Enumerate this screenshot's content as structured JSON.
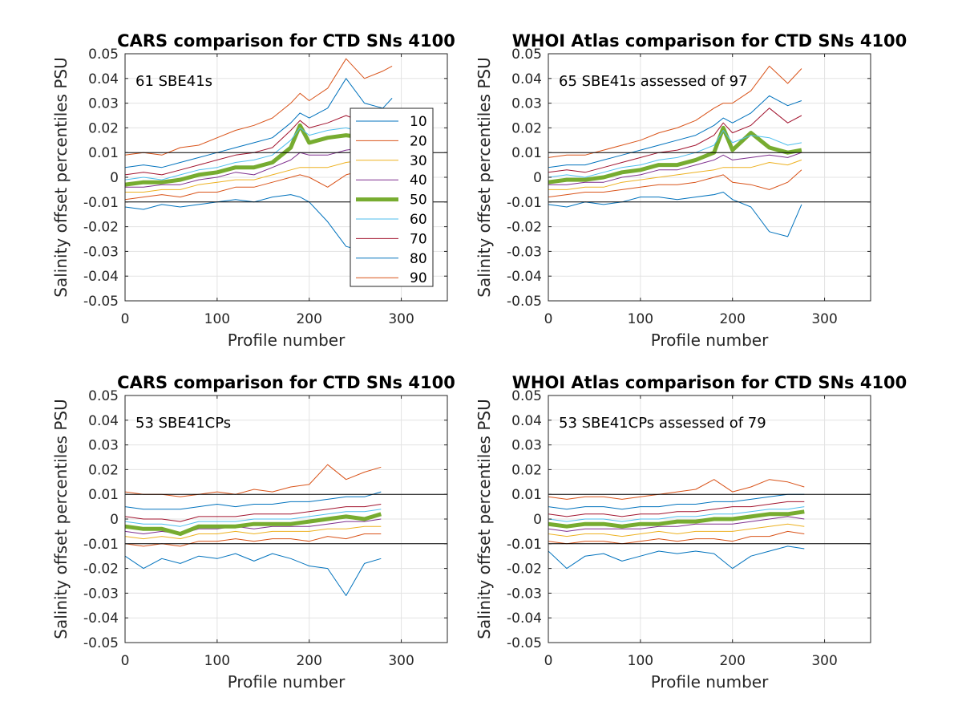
{
  "chart_data": [
    {
      "type": "line",
      "title": "CARS comparison for CTD SNs 4100",
      "xlabel": "Profile number",
      "ylabel": "Salinity offset percentiles PSU",
      "annotation": "61 SBE41s",
      "xlim": [
        0,
        350
      ],
      "ylim": [
        -0.05,
        0.05
      ],
      "xticks": [
        "0",
        "100",
        "200",
        "300"
      ],
      "yticks": [
        "-0.05",
        "-0.04",
        "-0.03",
        "-0.02",
        "-0.01",
        "0",
        "0.01",
        "0.02",
        "0.03",
        "0.04",
        "0.05"
      ],
      "grid": true,
      "reference_lines": [
        0.01,
        -0.01
      ],
      "legend": {
        "placement": "right-inside",
        "entries": [
          "10",
          "20",
          "30",
          "40",
          "50",
          "60",
          "70",
          "80",
          "90"
        ]
      },
      "x": [
        0,
        20,
        40,
        60,
        80,
        100,
        120,
        140,
        160,
        180,
        190,
        200,
        220,
        240,
        260,
        280,
        290
      ],
      "series": [
        {
          "name": "10",
          "color": "#0072BD",
          "values": [
            -0.012,
            -0.013,
            -0.011,
            -0.012,
            -0.011,
            -0.01,
            -0.009,
            -0.01,
            -0.008,
            -0.007,
            -0.008,
            -0.01,
            -0.018,
            -0.028,
            -0.03,
            -0.02,
            -0.016
          ]
        },
        {
          "name": "20",
          "color": "#D95319",
          "values": [
            -0.009,
            -0.008,
            -0.007,
            -0.008,
            -0.006,
            -0.006,
            -0.004,
            -0.004,
            -0.002,
            0.0,
            0.001,
            0.0,
            -0.004,
            0.001,
            0.003,
            -0.001,
            0.0
          ]
        },
        {
          "name": "30",
          "color": "#EDB120",
          "values": [
            -0.006,
            -0.006,
            -0.005,
            -0.005,
            -0.003,
            -0.002,
            -0.001,
            -0.001,
            0.001,
            0.003,
            0.004,
            0.004,
            0.004,
            0.006,
            0.007,
            0.006,
            0.007
          ]
        },
        {
          "name": "40",
          "color": "#7E2F8E",
          "values": [
            -0.004,
            -0.004,
            -0.003,
            -0.003,
            -0.001,
            0.0,
            0.002,
            0.001,
            0.004,
            0.007,
            0.01,
            0.009,
            0.009,
            0.011,
            0.012,
            0.01,
            0.011
          ]
        },
        {
          "name": "50",
          "color": "#77AC30",
          "values": [
            -0.003,
            -0.002,
            -0.002,
            -0.001,
            0.001,
            0.002,
            0.004,
            0.004,
            0.006,
            0.012,
            0.021,
            0.014,
            0.016,
            0.017,
            0.016,
            0.015,
            0.016
          ]
        },
        {
          "name": "60",
          "color": "#4DBEEE",
          "values": [
            -0.001,
            0.0,
            -0.001,
            0.001,
            0.003,
            0.004,
            0.006,
            0.007,
            0.009,
            0.015,
            0.02,
            0.017,
            0.019,
            0.02,
            0.018,
            0.017,
            0.019
          ]
        },
        {
          "name": "70",
          "color": "#A2142F",
          "values": [
            0.001,
            0.002,
            0.001,
            0.003,
            0.005,
            0.007,
            0.009,
            0.01,
            0.012,
            0.019,
            0.023,
            0.02,
            0.022,
            0.025,
            0.022,
            0.02,
            0.021
          ]
        },
        {
          "name": "80",
          "color": "#0072BD",
          "values": [
            0.004,
            0.005,
            0.004,
            0.006,
            0.008,
            0.01,
            0.012,
            0.014,
            0.016,
            0.022,
            0.026,
            0.024,
            0.028,
            0.04,
            0.03,
            0.028,
            0.032
          ]
        },
        {
          "name": "90",
          "color": "#D95319",
          "values": [
            0.009,
            0.01,
            0.009,
            0.012,
            0.013,
            0.016,
            0.019,
            0.021,
            0.024,
            0.03,
            0.034,
            0.031,
            0.036,
            0.048,
            0.04,
            0.043,
            0.045
          ]
        }
      ]
    },
    {
      "type": "line",
      "title": "WHOI Atlas comparison for CTD SNs 4100",
      "xlabel": "Profile number",
      "ylabel": "Salinity offset percentiles PSU",
      "annotation": "65 SBE41s assessed of 97",
      "xlim": [
        0,
        350
      ],
      "ylim": [
        -0.05,
        0.05
      ],
      "xticks": [
        "0",
        "100",
        "200",
        "300"
      ],
      "yticks": [
        "-0.05",
        "-0.04",
        "-0.03",
        "-0.02",
        "-0.01",
        "0",
        "0.01",
        "0.02",
        "0.03",
        "0.04",
        "0.05"
      ],
      "grid": true,
      "reference_lines": [
        0.01,
        -0.01
      ],
      "x": [
        0,
        20,
        40,
        60,
        80,
        100,
        120,
        140,
        160,
        180,
        190,
        200,
        220,
        240,
        260,
        275
      ],
      "series": [
        {
          "name": "10",
          "color": "#0072BD",
          "values": [
            -0.011,
            -0.012,
            -0.01,
            -0.011,
            -0.01,
            -0.008,
            -0.008,
            -0.009,
            -0.008,
            -0.007,
            -0.006,
            -0.009,
            -0.012,
            -0.022,
            -0.024,
            -0.011
          ]
        },
        {
          "name": "20",
          "color": "#D95319",
          "values": [
            -0.008,
            -0.007,
            -0.006,
            -0.006,
            -0.005,
            -0.004,
            -0.003,
            -0.003,
            -0.002,
            0.0,
            0.001,
            -0.002,
            -0.003,
            -0.005,
            -0.002,
            0.003
          ]
        },
        {
          "name": "30",
          "color": "#EDB120",
          "values": [
            -0.005,
            -0.005,
            -0.004,
            -0.004,
            -0.002,
            -0.001,
            0.0,
            0.001,
            0.002,
            0.003,
            0.004,
            0.004,
            0.004,
            0.006,
            0.005,
            0.007
          ]
        },
        {
          "name": "40",
          "color": "#7E2F8E",
          "values": [
            -0.003,
            -0.003,
            -0.002,
            -0.002,
            0.0,
            0.001,
            0.003,
            0.003,
            0.005,
            0.007,
            0.009,
            0.007,
            0.008,
            0.009,
            0.008,
            0.01
          ]
        },
        {
          "name": "50",
          "color": "#77AC30",
          "values": [
            -0.002,
            -0.001,
            -0.001,
            0.0,
            0.002,
            0.003,
            0.005,
            0.005,
            0.007,
            0.01,
            0.02,
            0.011,
            0.018,
            0.012,
            0.01,
            0.011
          ]
        },
        {
          "name": "60",
          "color": "#4DBEEE",
          "values": [
            0.0,
            0.001,
            0.0,
            0.002,
            0.004,
            0.005,
            0.007,
            0.008,
            0.01,
            0.013,
            0.019,
            0.014,
            0.017,
            0.016,
            0.013,
            0.014
          ]
        },
        {
          "name": "70",
          "color": "#A2142F",
          "values": [
            0.002,
            0.003,
            0.002,
            0.004,
            0.006,
            0.008,
            0.01,
            0.011,
            0.013,
            0.017,
            0.022,
            0.018,
            0.021,
            0.028,
            0.022,
            0.025
          ]
        },
        {
          "name": "80",
          "color": "#0072BD",
          "values": [
            0.004,
            0.005,
            0.005,
            0.007,
            0.009,
            0.011,
            0.013,
            0.015,
            0.017,
            0.021,
            0.024,
            0.022,
            0.026,
            0.033,
            0.029,
            0.031
          ]
        },
        {
          "name": "90",
          "color": "#D95319",
          "values": [
            0.008,
            0.009,
            0.009,
            0.011,
            0.013,
            0.015,
            0.018,
            0.02,
            0.023,
            0.028,
            0.03,
            0.03,
            0.035,
            0.045,
            0.038,
            0.044
          ]
        }
      ]
    },
    {
      "type": "line",
      "title": "CARS comparison for CTD SNs 4100",
      "xlabel": "Profile number",
      "ylabel": "Salinity offset percentiles PSU",
      "annotation": "53 SBE41CPs",
      "xlim": [
        0,
        350
      ],
      "ylim": [
        -0.05,
        0.05
      ],
      "xticks": [
        "0",
        "100",
        "200",
        "300"
      ],
      "yticks": [
        "-0.05",
        "-0.04",
        "-0.03",
        "-0.02",
        "-0.01",
        "0",
        "0.01",
        "0.02",
        "0.03",
        "0.04",
        "0.05"
      ],
      "grid": true,
      "reference_lines": [
        0.01,
        -0.01
      ],
      "x": [
        0,
        20,
        40,
        60,
        80,
        100,
        120,
        140,
        160,
        180,
        200,
        220,
        240,
        260,
        278
      ],
      "series": [
        {
          "name": "10",
          "color": "#0072BD",
          "values": [
            -0.015,
            -0.02,
            -0.016,
            -0.018,
            -0.015,
            -0.016,
            -0.014,
            -0.017,
            -0.014,
            -0.016,
            -0.019,
            -0.02,
            -0.031,
            -0.018,
            -0.016
          ]
        },
        {
          "name": "20",
          "color": "#D95319",
          "values": [
            -0.01,
            -0.011,
            -0.01,
            -0.011,
            -0.009,
            -0.009,
            -0.008,
            -0.009,
            -0.008,
            -0.008,
            -0.009,
            -0.007,
            -0.008,
            -0.006,
            -0.006
          ]
        },
        {
          "name": "30",
          "color": "#EDB120",
          "values": [
            -0.007,
            -0.008,
            -0.007,
            -0.008,
            -0.006,
            -0.006,
            -0.005,
            -0.006,
            -0.005,
            -0.005,
            -0.005,
            -0.004,
            -0.004,
            -0.003,
            -0.003
          ]
        },
        {
          "name": "40",
          "color": "#7E2F8E",
          "values": [
            -0.005,
            -0.006,
            -0.005,
            -0.006,
            -0.004,
            -0.004,
            -0.003,
            -0.004,
            -0.003,
            -0.003,
            -0.003,
            -0.002,
            -0.001,
            -0.001,
            0.0
          ]
        },
        {
          "name": "50",
          "color": "#77AC30",
          "values": [
            -0.003,
            -0.004,
            -0.004,
            -0.006,
            -0.003,
            -0.003,
            -0.003,
            -0.002,
            -0.002,
            -0.002,
            -0.001,
            0.0,
            0.001,
            0.0,
            0.002
          ]
        },
        {
          "name": "60",
          "color": "#4DBEEE",
          "values": [
            -0.001,
            -0.002,
            -0.002,
            -0.003,
            -0.001,
            -0.001,
            -0.001,
            0.0,
            0.0,
            0.0,
            0.001,
            0.002,
            0.003,
            0.003,
            0.004
          ]
        },
        {
          "name": "70",
          "color": "#A2142F",
          "values": [
            0.001,
            0.0,
            0.0,
            -0.001,
            0.001,
            0.001,
            0.001,
            0.002,
            0.002,
            0.002,
            0.003,
            0.004,
            0.005,
            0.005,
            0.006
          ]
        },
        {
          "name": "80",
          "color": "#0072BD",
          "values": [
            0.005,
            0.004,
            0.004,
            0.004,
            0.005,
            0.006,
            0.005,
            0.006,
            0.006,
            0.007,
            0.007,
            0.008,
            0.009,
            0.009,
            0.011
          ]
        },
        {
          "name": "90",
          "color": "#D95319",
          "values": [
            0.011,
            0.01,
            0.01,
            0.009,
            0.01,
            0.011,
            0.01,
            0.012,
            0.011,
            0.013,
            0.014,
            0.022,
            0.016,
            0.019,
            0.021
          ]
        }
      ]
    },
    {
      "type": "line",
      "title": "WHOI Atlas comparison for CTD SNs 4100",
      "xlabel": "Profile number",
      "ylabel": "Salinity offset percentiles PSU",
      "annotation": "53 SBE41CPs assessed of 79",
      "xlim": [
        0,
        350
      ],
      "ylim": [
        -0.05,
        0.05
      ],
      "xticks": [
        "0",
        "100",
        "200",
        "300"
      ],
      "yticks": [
        "-0.05",
        "-0.04",
        "-0.03",
        "-0.02",
        "-0.01",
        "0",
        "0.01",
        "0.02",
        "0.03",
        "0.04",
        "0.05"
      ],
      "grid": true,
      "reference_lines": [
        0.01,
        -0.01
      ],
      "x": [
        0,
        20,
        40,
        60,
        80,
        100,
        120,
        140,
        160,
        180,
        200,
        220,
        240,
        260,
        278
      ],
      "series": [
        {
          "name": "10",
          "color": "#0072BD",
          "values": [
            -0.013,
            -0.02,
            -0.015,
            -0.014,
            -0.017,
            -0.015,
            -0.013,
            -0.014,
            -0.013,
            -0.014,
            -0.02,
            -0.015,
            -0.013,
            -0.011,
            -0.012
          ]
        },
        {
          "name": "20",
          "color": "#D95319",
          "values": [
            -0.009,
            -0.01,
            -0.009,
            -0.009,
            -0.01,
            -0.009,
            -0.008,
            -0.009,
            -0.008,
            -0.008,
            -0.009,
            -0.007,
            -0.007,
            -0.005,
            -0.006
          ]
        },
        {
          "name": "30",
          "color": "#EDB120",
          "values": [
            -0.006,
            -0.007,
            -0.006,
            -0.006,
            -0.007,
            -0.006,
            -0.005,
            -0.006,
            -0.005,
            -0.005,
            -0.005,
            -0.004,
            -0.003,
            -0.002,
            -0.003
          ]
        },
        {
          "name": "40",
          "color": "#7E2F8E",
          "values": [
            -0.004,
            -0.005,
            -0.004,
            -0.004,
            -0.004,
            -0.004,
            -0.003,
            -0.003,
            -0.002,
            -0.002,
            -0.002,
            -0.001,
            0.0,
            0.001,
            0.0
          ]
        },
        {
          "name": "50",
          "color": "#77AC30",
          "values": [
            -0.002,
            -0.003,
            -0.002,
            -0.002,
            -0.003,
            -0.002,
            -0.002,
            -0.001,
            -0.001,
            0.0,
            0.0,
            0.001,
            0.002,
            0.002,
            0.003
          ]
        },
        {
          "name": "60",
          "color": "#4DBEEE",
          "values": [
            0.0,
            -0.001,
            0.0,
            0.0,
            -0.001,
            0.0,
            0.0,
            0.001,
            0.001,
            0.002,
            0.002,
            0.003,
            0.004,
            0.004,
            0.005
          ]
        },
        {
          "name": "70",
          "color": "#A2142F",
          "values": [
            0.002,
            0.001,
            0.002,
            0.002,
            0.001,
            0.002,
            0.002,
            0.003,
            0.003,
            0.004,
            0.005,
            0.005,
            0.006,
            0.007,
            0.007
          ]
        },
        {
          "name": "80",
          "color": "#0072BD",
          "values": [
            0.005,
            0.004,
            0.005,
            0.005,
            0.004,
            0.005,
            0.005,
            0.006,
            0.006,
            0.007,
            0.007,
            0.008,
            0.009,
            0.01,
            0.01
          ]
        },
        {
          "name": "90",
          "color": "#D95319",
          "values": [
            0.009,
            0.008,
            0.009,
            0.009,
            0.008,
            0.009,
            0.01,
            0.011,
            0.012,
            0.016,
            0.011,
            0.013,
            0.016,
            0.015,
            0.013
          ]
        }
      ]
    }
  ]
}
